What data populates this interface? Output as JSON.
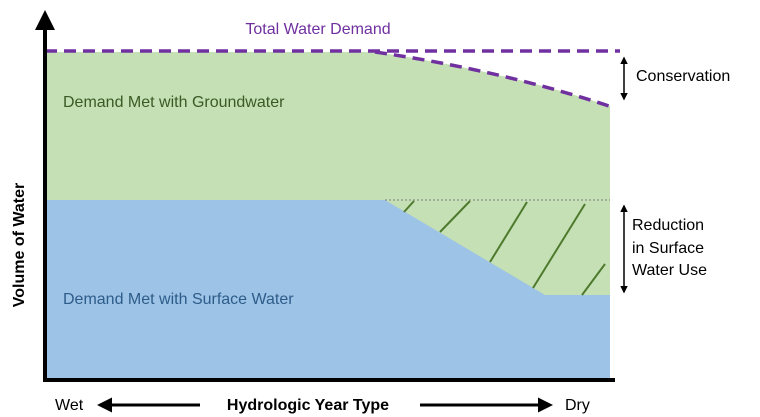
{
  "diagram": {
    "total_demand": "Total Water Demand",
    "conservation": "Conservation",
    "groundwater": "Demand Met with Groundwater",
    "surface_water": "Demand Met with Surface Water",
    "reduction": [
      "Reduction",
      "in Surface",
      "Water Use"
    ],
    "y_axis": "Volume of Water",
    "x_axis": "Hydrologic Year Type",
    "x_left": "Wet",
    "x_right": "Dry"
  }
}
